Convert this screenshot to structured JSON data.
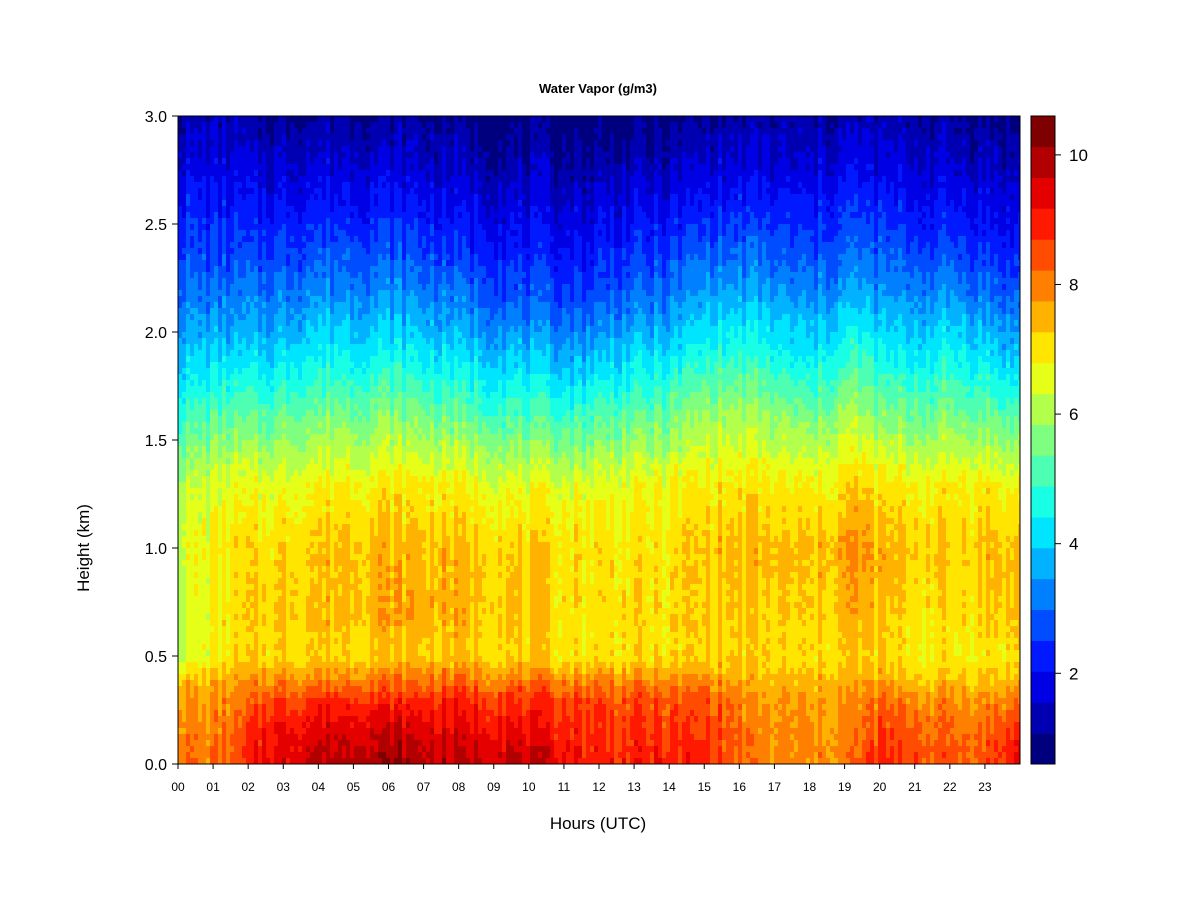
{
  "chart_data": {
    "type": "heatmap",
    "title": "Water Vapor (g/m3)",
    "xlabel": "Hours (UTC)",
    "ylabel": "Height (km)",
    "xlim": [
      0,
      24
    ],
    "ylim": [
      0.0,
      3.0
    ],
    "x_ticks": [
      "00",
      "01",
      "02",
      "03",
      "04",
      "05",
      "06",
      "07",
      "08",
      "09",
      "10",
      "11",
      "12",
      "13",
      "14",
      "15",
      "16",
      "17",
      "18",
      "19",
      "20",
      "21",
      "22",
      "23"
    ],
    "y_ticks": [
      "0.0",
      "0.5",
      "1.0",
      "1.5",
      "2.0",
      "2.5",
      "3.0"
    ],
    "colorbar": {
      "range": [
        0.6,
        10.6
      ],
      "ticks": [
        {
          "value": 2,
          "label": "2"
        },
        {
          "value": 4,
          "label": "4"
        },
        {
          "value": 6,
          "label": "6"
        },
        {
          "value": 8,
          "label": "8"
        },
        {
          "value": 10,
          "label": "10"
        }
      ],
      "colors": [
        "#00007f",
        "#0000b2",
        "#0000e5",
        "#0019ff",
        "#004cff",
        "#007fff",
        "#00b2ff",
        "#00e5ff",
        "#19ffe5",
        "#4cffb2",
        "#7fff7f",
        "#b2ff4c",
        "#e5ff19",
        "#ffe500",
        "#ffb200",
        "#ff7f00",
        "#ff4c00",
        "#ff1900",
        "#e50000",
        "#b20000",
        "#7f0000"
      ]
    },
    "profile_heights_km": [
      0.0,
      0.1,
      0.2,
      0.3,
      0.4,
      0.5,
      0.7,
      1.0,
      1.3,
      1.6,
      1.8,
      2.0,
      2.2,
      2.5,
      2.8,
      3.0
    ],
    "profiles": [
      {
        "hour": 0,
        "values": [
          8.3,
          8.2,
          8.0,
          7.8,
          7.2,
          6.3,
          6.3,
          6.5,
          6.2,
          5.0,
          4.2,
          3.6,
          3.0,
          2.4,
          1.7,
          1.3
        ]
      },
      {
        "hour": 0.7,
        "values": [
          8.0,
          7.9,
          7.8,
          7.7,
          7.3,
          6.6,
          6.6,
          6.7,
          6.3,
          5.1,
          4.3,
          3.6,
          3.0,
          2.4,
          1.7,
          1.3
        ]
      },
      {
        "hour": 1.6,
        "values": [
          8.2,
          8.2,
          8.1,
          7.9,
          7.5,
          7.0,
          7.0,
          7.0,
          6.5,
          5.3,
          4.4,
          3.6,
          3.0,
          2.3,
          1.6,
          1.2
        ]
      },
      {
        "hour": 2.5,
        "values": [
          9.3,
          9.1,
          8.9,
          8.4,
          7.8,
          7.1,
          7.2,
          7.1,
          6.5,
          5.3,
          4.4,
          3.6,
          3.0,
          2.2,
          1.5,
          1.0
        ]
      },
      {
        "hour": 4,
        "values": [
          9.8,
          9.6,
          9.3,
          8.8,
          7.9,
          7.2,
          7.4,
          7.3,
          6.8,
          5.6,
          4.8,
          4.0,
          3.3,
          2.4,
          1.6,
          1.1
        ]
      },
      {
        "hour": 6,
        "values": [
          10.1,
          9.8,
          9.4,
          8.8,
          8.0,
          7.3,
          7.6,
          7.5,
          6.9,
          5.7,
          4.9,
          4.0,
          3.3,
          2.4,
          1.6,
          1.1
        ]
      },
      {
        "hour": 8,
        "values": [
          9.7,
          9.5,
          9.2,
          8.8,
          8.0,
          7.3,
          7.5,
          7.4,
          6.8,
          5.4,
          4.5,
          3.7,
          3.0,
          2.1,
          1.4,
          1.0
        ]
      },
      {
        "hour": 9.5,
        "values": [
          9.8,
          9.5,
          9.1,
          8.7,
          7.9,
          7.2,
          7.3,
          7.2,
          6.5,
          5.1,
          4.3,
          3.4,
          2.7,
          1.9,
          1.2,
          0.8
        ]
      },
      {
        "hour": 11.3,
        "values": [
          9.2,
          9.0,
          8.8,
          8.6,
          7.8,
          7.0,
          7.0,
          7.1,
          6.5,
          5.0,
          4.0,
          3.2,
          2.5,
          1.8,
          1.1,
          0.8
        ]
      },
      {
        "hour": 12.5,
        "values": [
          8.9,
          8.8,
          8.6,
          8.5,
          7.8,
          7.0,
          7.1,
          7.0,
          6.6,
          5.3,
          4.4,
          3.5,
          2.8,
          2.0,
          1.2,
          0.8
        ]
      },
      {
        "hour": 14,
        "values": [
          9.0,
          8.8,
          8.6,
          8.4,
          7.7,
          7.0,
          7.0,
          7.0,
          6.7,
          5.4,
          4.6,
          3.7,
          3.0,
          2.1,
          1.3,
          0.9
        ]
      },
      {
        "hour": 15.2,
        "values": [
          8.8,
          8.7,
          8.6,
          8.4,
          7.8,
          7.2,
          7.3,
          7.4,
          6.9,
          6.0,
          5.2,
          4.3,
          3.5,
          2.5,
          1.6,
          1.1
        ]
      },
      {
        "hour": 16.5,
        "values": [
          7.9,
          7.9,
          7.8,
          7.7,
          7.4,
          7.1,
          7.2,
          7.4,
          6.9,
          5.9,
          5.1,
          4.3,
          3.5,
          2.5,
          1.6,
          1.2
        ]
      },
      {
        "hour": 18,
        "values": [
          7.8,
          7.8,
          7.7,
          7.6,
          7.3,
          7.0,
          7.1,
          7.3,
          6.7,
          5.5,
          4.6,
          3.8,
          3.1,
          2.3,
          1.5,
          1.1
        ]
      },
      {
        "hour": 19.3,
        "values": [
          8.1,
          8.0,
          7.9,
          7.8,
          7.5,
          7.2,
          7.5,
          7.8,
          7.2,
          6.1,
          5.3,
          4.5,
          3.6,
          2.6,
          1.8,
          1.3
        ]
      },
      {
        "hour": 20,
        "values": [
          8.9,
          8.7,
          8.4,
          8.1,
          7.5,
          7.1,
          7.3,
          7.5,
          6.9,
          5.6,
          4.8,
          4.0,
          3.3,
          2.4,
          1.6,
          1.2
        ]
      },
      {
        "hour": 21,
        "values": [
          8.6,
          8.4,
          8.2,
          7.9,
          7.3,
          6.9,
          7.1,
          7.3,
          6.8,
          5.5,
          4.7,
          3.9,
          3.2,
          2.3,
          1.6,
          1.2
        ]
      },
      {
        "hour": 22,
        "values": [
          8.4,
          8.3,
          8.1,
          7.8,
          7.3,
          6.8,
          7.0,
          7.2,
          6.8,
          5.6,
          4.8,
          4.1,
          3.3,
          2.3,
          1.5,
          1.1
        ]
      },
      {
        "hour": 23,
        "values": [
          8.5,
          8.3,
          8.1,
          7.8,
          7.3,
          6.9,
          7.2,
          7.4,
          6.9,
          5.5,
          4.6,
          3.8,
          3.0,
          2.1,
          1.4,
          1.0
        ]
      },
      {
        "hour": 23.9,
        "values": [
          9.3,
          9.0,
          8.5,
          8.0,
          7.4,
          7.0,
          7.4,
          7.3,
          6.6,
          5.1,
          4.2,
          3.4,
          2.7,
          1.9,
          1.3,
          0.9
        ]
      }
    ]
  }
}
